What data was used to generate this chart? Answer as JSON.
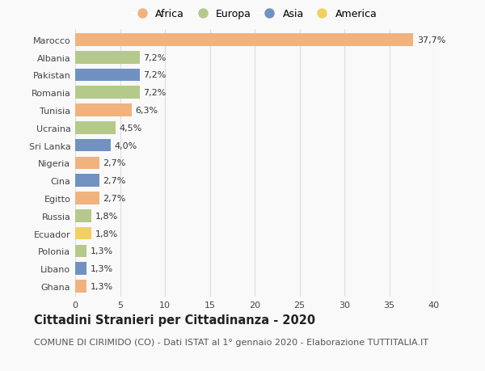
{
  "countries": [
    "Marocco",
    "Albania",
    "Pakistan",
    "Romania",
    "Tunisia",
    "Ucraina",
    "Sri Lanka",
    "Nigeria",
    "Cina",
    "Egitto",
    "Russia",
    "Ecuador",
    "Polonia",
    "Libano",
    "Ghana"
  ],
  "values": [
    37.7,
    7.2,
    7.2,
    7.2,
    6.3,
    4.5,
    4.0,
    2.7,
    2.7,
    2.7,
    1.8,
    1.8,
    1.3,
    1.3,
    1.3
  ],
  "labels": [
    "37,7%",
    "7,2%",
    "7,2%",
    "7,2%",
    "6,3%",
    "4,5%",
    "4,0%",
    "2,7%",
    "2,7%",
    "2,7%",
    "1,8%",
    "1,8%",
    "1,3%",
    "1,3%",
    "1,3%"
  ],
  "continents": [
    "Africa",
    "Europa",
    "Asia",
    "Europa",
    "Africa",
    "Europa",
    "Asia",
    "Africa",
    "Asia",
    "Africa",
    "Europa",
    "America",
    "Europa",
    "Asia",
    "Africa"
  ],
  "continent_colors": {
    "Africa": "#F2B27E",
    "Europa": "#B5C98A",
    "Asia": "#7191C0",
    "America": "#F2D060"
  },
  "legend_order": [
    "Africa",
    "Europa",
    "Asia",
    "America"
  ],
  "title": "Cittadini Stranieri per Cittadinanza - 2020",
  "subtitle": "COMUNE DI CIRIMIDO (CO) - Dati ISTAT al 1° gennaio 2020 - Elaborazione TUTTITALIA.IT",
  "xlim": [
    0,
    40
  ],
  "xticks": [
    0,
    5,
    10,
    15,
    20,
    25,
    30,
    35,
    40
  ],
  "background_color": "#f9f9f9",
  "grid_color": "#dddddd",
  "bar_height": 0.72,
  "title_fontsize": 10.5,
  "subtitle_fontsize": 8.0,
  "tick_fontsize": 8.0,
  "label_fontsize": 8.0,
  "legend_fontsize": 9.0
}
